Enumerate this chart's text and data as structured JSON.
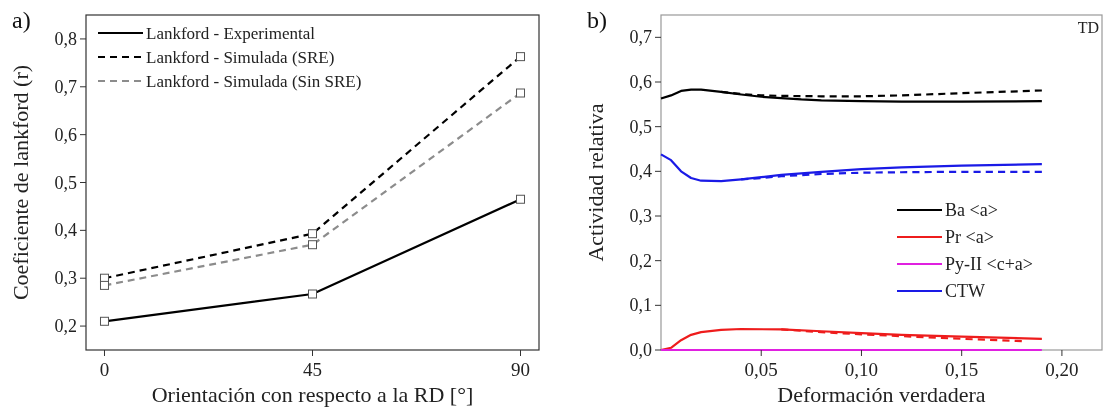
{
  "chart_data": [
    {
      "type": "line",
      "title": "a)",
      "xlabel": "Orientación  con respecto a la RD [°]",
      "ylabel": "Coeficiente de lankford (r)",
      "x": [
        0,
        45,
        90
      ],
      "xlim": [
        -4,
        94
      ],
      "xticks": [
        0,
        45,
        90
      ],
      "ylim": [
        0.15,
        0.85
      ],
      "yticks": [
        {
          "value": 0.2,
          "label": "0,2"
        },
        {
          "value": 0.3,
          "label": "0,3"
        },
        {
          "value": 0.4,
          "label": "0,4"
        },
        {
          "value": 0.5,
          "label": "0,5"
        },
        {
          "value": 0.6,
          "label": "0,6"
        },
        {
          "value": 0.7,
          "label": "0,7"
        },
        {
          "value": 0.8,
          "label": "0,8"
        }
      ],
      "marker": "square",
      "legend": "top left",
      "grid": false,
      "series": [
        {
          "name": "Lankford - Experimental",
          "color": "#000000",
          "line_style": "solid",
          "values": [
            0.21,
            0.267,
            0.465
          ]
        },
        {
          "name": "Lankford - Simulada (SRE)",
          "color": "#000000",
          "line_style": "dashed",
          "values": [
            0.3,
            0.393,
            0.763
          ]
        },
        {
          "name": "Lankford - Simulada (Sin SRE)",
          "color": "#8c8c8c",
          "line_style": "dashed",
          "values": [
            0.285,
            0.37,
            0.687
          ]
        }
      ]
    },
    {
      "type": "line",
      "title": "b)",
      "xlabel": "Deformación verdadera",
      "ylabel": "Actividad relativa",
      "annotations": [
        "TD"
      ],
      "xlim": [
        0,
        0.22
      ],
      "xticks": [
        {
          "value": 0.05,
          "label": "0,05"
        },
        {
          "value": 0.1,
          "label": "0,10"
        },
        {
          "value": 0.15,
          "label": "0,15"
        },
        {
          "value": 0.2,
          "label": "0,20"
        }
      ],
      "ylim": [
        0,
        0.75
      ],
      "yticks": [
        {
          "value": 0,
          "label": "0,0"
        },
        {
          "value": 0.1,
          "label": "0,1"
        },
        {
          "value": 0.2,
          "label": "0,2"
        },
        {
          "value": 0.3,
          "label": "0,3"
        },
        {
          "value": 0.4,
          "label": "0,4"
        },
        {
          "value": 0.5,
          "label": "0,5"
        },
        {
          "value": 0.6,
          "label": "0,6"
        },
        {
          "value": 0.7,
          "label": "0,7"
        }
      ],
      "legend": "right",
      "grid": false,
      "marker": "none",
      "series": [
        {
          "name": "Ba <a>",
          "color": "#000000",
          "line_style": "solid",
          "x": [
            0,
            0.005,
            0.01,
            0.015,
            0.02,
            0.03,
            0.04,
            0.05,
            0.06,
            0.07,
            0.08,
            0.1,
            0.12,
            0.15,
            0.19
          ],
          "values": [
            0.563,
            0.57,
            0.58,
            0.583,
            0.583,
            0.578,
            0.572,
            0.567,
            0.564,
            0.561,
            0.559,
            0.557,
            0.556,
            0.556,
            0.557
          ]
        },
        {
          "color": "#000000",
          "line_style": "dashed",
          "x": [
            0.03,
            0.04,
            0.05,
            0.06,
            0.08,
            0.1,
            0.12,
            0.15,
            0.19
          ],
          "values": [
            0.578,
            0.573,
            0.57,
            0.569,
            0.568,
            0.568,
            0.57,
            0.575,
            0.581
          ]
        },
        {
          "name": "Pr <a>",
          "color": "#ee1c1c",
          "line_style": "solid",
          "x": [
            0,
            0.005,
            0.01,
            0.015,
            0.02,
            0.03,
            0.04,
            0.06,
            0.08,
            0.1,
            0.12,
            0.15,
            0.19
          ],
          "values": [
            0,
            0.005,
            0.022,
            0.034,
            0.04,
            0.045,
            0.047,
            0.046,
            0.042,
            0.038,
            0.034,
            0.03,
            0.025
          ]
        },
        {
          "color": "#ee1c1c",
          "line_style": "dashed",
          "x": [
            0.06,
            0.08,
            0.1,
            0.12,
            0.15,
            0.18
          ],
          "values": [
            0.046,
            0.04,
            0.035,
            0.031,
            0.025,
            0.02
          ]
        },
        {
          "name": "Py-II <c+a>",
          "color": "#e020e0",
          "line_style": "solid",
          "x": [
            0,
            0.19
          ],
          "values": [
            0,
            0
          ]
        },
        {
          "name": "CTW",
          "color": "#1a1ae6",
          "line_style": "solid",
          "x": [
            0,
            0.005,
            0.01,
            0.015,
            0.02,
            0.03,
            0.04,
            0.05,
            0.06,
            0.08,
            0.1,
            0.12,
            0.15,
            0.19
          ],
          "values": [
            0.438,
            0.425,
            0.4,
            0.385,
            0.379,
            0.378,
            0.382,
            0.387,
            0.392,
            0.399,
            0.405,
            0.409,
            0.413,
            0.416
          ]
        },
        {
          "color": "#1a1ae6",
          "line_style": "dashed",
          "x": [
            0.04,
            0.05,
            0.06,
            0.08,
            0.1,
            0.12,
            0.15,
            0.19
          ],
          "values": [
            0.382,
            0.385,
            0.389,
            0.394,
            0.397,
            0.398,
            0.399,
            0.399
          ]
        }
      ]
    }
  ]
}
